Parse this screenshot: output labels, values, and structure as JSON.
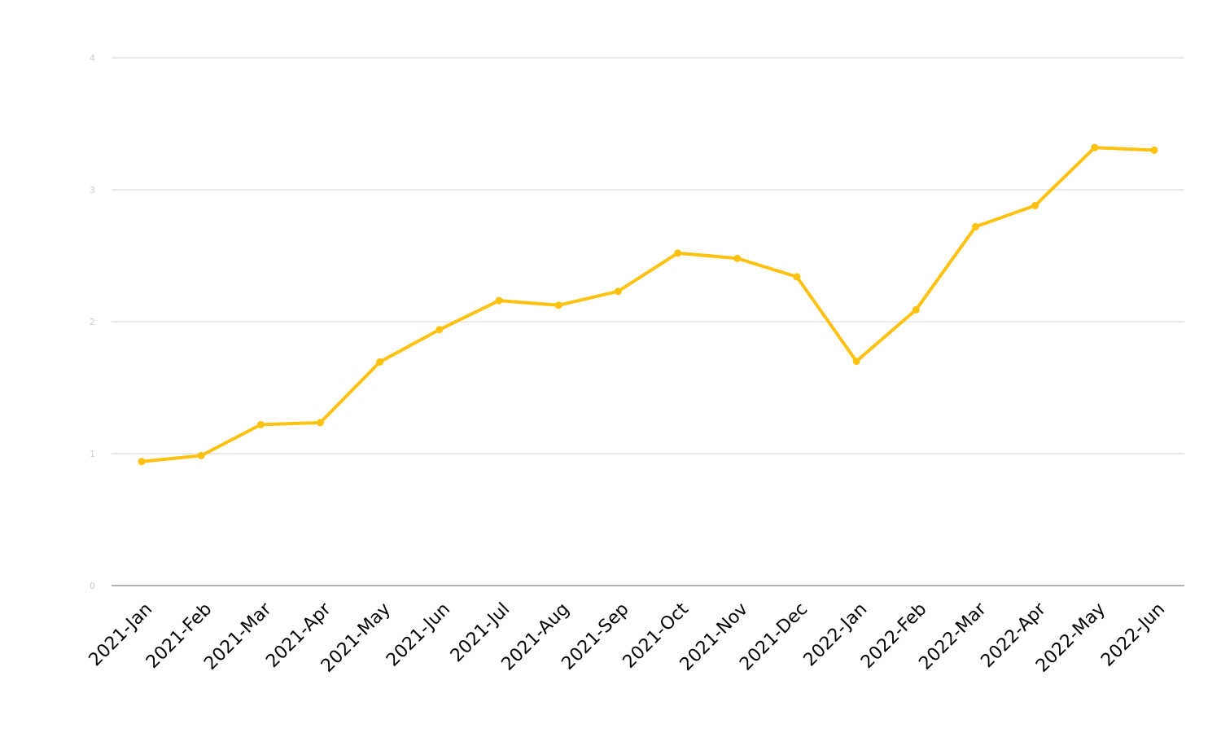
{
  "chart_data": {
    "type": "line",
    "categories": [
      "2021-Jan",
      "2021-Feb",
      "2021-Mar",
      "2021-Apr",
      "2021-May",
      "2021-Jun",
      "2021-Jul",
      "2021-Aug",
      "2021-Sep",
      "2021-Oct",
      "2021-Nov",
      "2021-Dec",
      "2022-Jan",
      "2022-Feb",
      "2022-Mar",
      "2022-Apr",
      "2022-May",
      "2022-Jun"
    ],
    "series": [
      {
        "values": [
          0.94,
          0.985,
          1.22,
          1.235,
          1.695,
          1.94,
          2.16,
          2.125,
          2.23,
          2.52,
          2.48,
          2.34,
          1.7,
          2.09,
          2.72,
          2.88,
          3.32,
          3.3
        ]
      }
    ],
    "ylim": [
      0,
      4
    ],
    "yticks": [
      0,
      1,
      2,
      3,
      4
    ],
    "grid": true,
    "line_color": "#FDC10F"
  }
}
